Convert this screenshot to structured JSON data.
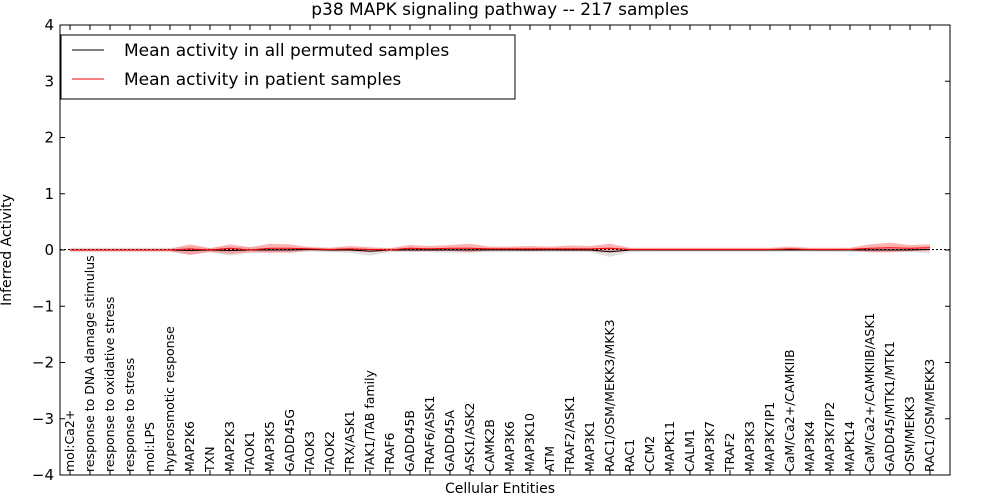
{
  "chart_data": {
    "type": "line",
    "title": "p38 MAPK signaling pathway -- 217 samples",
    "xlabel": "Cellular Entities",
    "ylabel": "Inferred Activity",
    "ylim": [
      -4,
      4
    ],
    "yticks": [
      -4,
      -3,
      -2,
      -1,
      0,
      1,
      2,
      3,
      4
    ],
    "ytick_labels": [
      "−4",
      "−3",
      "−2",
      "−1",
      "0",
      "1",
      "2",
      "3",
      "4"
    ],
    "grid": false,
    "legend_position": "top-left",
    "categories": [
      "mol:Ca2+",
      "response to DNA damage stimulus",
      "response to oxidative stress",
      "response to stress",
      "mol:LPS",
      "hyperosmotic response",
      "MAP2K6",
      "TXN",
      "MAP2K3",
      "TAOK1",
      "MAP3K5",
      "GADD45G",
      "TAOK3",
      "TAOK2",
      "TRX/ASK1",
      "TAK1/TAB family",
      "TRAF6",
      "GADD45B",
      "TRAF6/ASK1",
      "GADD45A",
      "ASK1/ASK2",
      "CAMK2B",
      "MAP3K6",
      "MAP3K10",
      "ATM",
      "TRAF2/ASK1",
      "MAP3K1",
      "RAC1/OSM/MEKK3/MKK3",
      "RAC1",
      "CCM2",
      "MAPK11",
      "CALM1",
      "MAP3K7",
      "TRAF2",
      "MAP3K3",
      "MAP3K7IP1",
      "CaM/Ca2+/CAMKIIB",
      "MAP3K4",
      "MAP3K7IP2",
      "MAPK14",
      "CaM/Ca2+/CAMKIIB/ASK1",
      "GADD45/MTK1/MTK1",
      "OSM/MEKK3",
      "RAC1/OSM/MEKK3"
    ],
    "series": [
      {
        "name": "Mean activity in all permuted samples",
        "color": "#000000",
        "band_color": "#999999",
        "values": [
          0,
          0,
          0,
          0,
          0,
          0,
          -0.01,
          0,
          -0.01,
          0,
          0,
          0,
          0.01,
          0,
          0,
          -0.02,
          0,
          0,
          0,
          0,
          0,
          0,
          0,
          0,
          0,
          0,
          0,
          -0.03,
          0,
          0,
          0,
          0,
          0,
          0,
          0,
          0,
          0,
          0,
          0,
          0,
          0,
          0,
          0,
          0.01
        ],
        "lower": [
          -0.04,
          -0.04,
          -0.04,
          -0.04,
          -0.04,
          -0.04,
          -0.08,
          -0.04,
          -0.1,
          -0.05,
          -0.04,
          -0.04,
          -0.03,
          -0.04,
          -0.05,
          -0.1,
          -0.04,
          -0.04,
          -0.04,
          -0.05,
          -0.05,
          -0.04,
          -0.04,
          -0.04,
          -0.04,
          -0.04,
          -0.04,
          -0.12,
          -0.04,
          -0.03,
          -0.03,
          -0.03,
          -0.03,
          -0.03,
          -0.03,
          -0.03,
          -0.03,
          -0.03,
          -0.03,
          -0.04,
          -0.04,
          -0.04,
          -0.04,
          -0.06
        ],
        "upper": [
          0.04,
          0.04,
          0.04,
          0.04,
          0.04,
          0.04,
          0.06,
          0.04,
          0.06,
          0.05,
          0.04,
          0.04,
          0.05,
          0.04,
          0.04,
          0.04,
          0.04,
          0.05,
          0.04,
          0.04,
          0.05,
          0.04,
          0.04,
          0.04,
          0.04,
          0.04,
          0.04,
          0.05,
          0.03,
          0.03,
          0.03,
          0.03,
          0.03,
          0.03,
          0.03,
          0.03,
          0.03,
          0.03,
          0.03,
          0.04,
          0.04,
          0.04,
          0.04,
          0.06
        ]
      },
      {
        "name": "Mean activity in patient samples",
        "color": "#ff0000",
        "band_color": "#ff6666",
        "values": [
          0,
          0,
          0,
          0,
          0,
          0,
          0.02,
          0,
          0.03,
          0,
          0.03,
          0.03,
          0.02,
          0.01,
          0.02,
          0.01,
          0,
          0.03,
          0.02,
          0.03,
          0.03,
          0.02,
          0.02,
          0.02,
          0.02,
          0.02,
          0.02,
          0.03,
          0.01,
          0.01,
          0.01,
          0.01,
          0.01,
          0.01,
          0.01,
          0.01,
          0.02,
          0.01,
          0.01,
          0.01,
          0.03,
          0.04,
          0.03,
          0.04
        ],
        "lower": [
          -0.02,
          -0.02,
          -0.02,
          -0.02,
          -0.02,
          -0.02,
          -0.09,
          -0.03,
          -0.07,
          -0.04,
          -0.05,
          -0.05,
          -0.01,
          -0.02,
          -0.02,
          -0.04,
          -0.02,
          -0.02,
          -0.02,
          -0.02,
          -0.04,
          -0.01,
          -0.01,
          -0.02,
          -0.01,
          -0.02,
          -0.02,
          -0.05,
          -0.01,
          -0.01,
          -0.01,
          -0.01,
          -0.01,
          -0.01,
          -0.01,
          -0.01,
          -0.01,
          -0.01,
          -0.01,
          -0.01,
          -0.04,
          -0.04,
          -0.02,
          -0.01
        ],
        "upper": [
          0.02,
          0.02,
          0.02,
          0.02,
          0.02,
          0.02,
          0.1,
          0.03,
          0.1,
          0.05,
          0.11,
          0.1,
          0.05,
          0.04,
          0.07,
          0.05,
          0.03,
          0.09,
          0.07,
          0.09,
          0.11,
          0.06,
          0.06,
          0.07,
          0.06,
          0.08,
          0.07,
          0.11,
          0.04,
          0.04,
          0.04,
          0.04,
          0.04,
          0.04,
          0.04,
          0.04,
          0.06,
          0.04,
          0.04,
          0.04,
          0.1,
          0.13,
          0.09,
          0.1
        ]
      }
    ]
  }
}
